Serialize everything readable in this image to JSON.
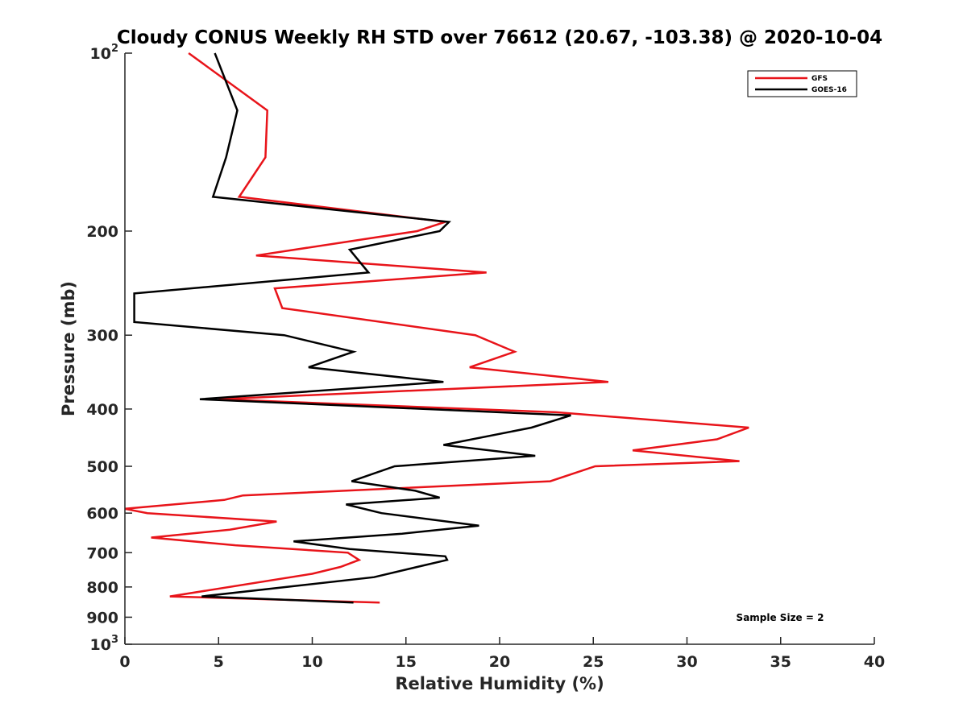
{
  "chart_data": {
    "type": "line",
    "title": "Cloudy CONUS Weekly RH STD over 76612 (20.67, -103.38) @ 2020-10-04",
    "xlabel": "Relative Humidity (%)",
    "ylabel": "Pressure (mb)",
    "xlim": [
      0,
      40
    ],
    "ylim": [
      100,
      1000
    ],
    "yscale": "log",
    "y_reversed": true,
    "x_ticks": [
      "0",
      "5",
      "10",
      "15",
      "20",
      "25",
      "30",
      "35",
      "40"
    ],
    "y_ticks": [
      {
        "value": 100,
        "base": "10",
        "exp": "2"
      },
      {
        "value": 200,
        "label": "200"
      },
      {
        "value": 300,
        "label": "300"
      },
      {
        "value": 400,
        "label": "400"
      },
      {
        "value": 500,
        "label": "500"
      },
      {
        "value": 600,
        "label": "600"
      },
      {
        "value": 700,
        "label": "700"
      },
      {
        "value": 800,
        "label": "800"
      },
      {
        "value": 900,
        "label": "900"
      },
      {
        "value": 1000,
        "base": "10",
        "exp": "3"
      }
    ],
    "legend_position": "top-right",
    "annotation": "Sample Size = 2",
    "series": [
      {
        "name": "GFS",
        "color": "#e8141a",
        "points": [
          [
            3.4,
            100
          ],
          [
            7.6,
            125
          ],
          [
            7.5,
            150
          ],
          [
            6.1,
            175
          ],
          [
            17.1,
            193
          ],
          [
            15.6,
            200
          ],
          [
            7.0,
            220
          ],
          [
            19.3,
            235
          ],
          [
            8.0,
            250
          ],
          [
            8.4,
            270
          ],
          [
            18.7,
            300
          ],
          [
            20.8,
            320
          ],
          [
            18.4,
            340
          ],
          [
            25.8,
            360
          ],
          [
            5.0,
            385
          ],
          [
            23.0,
            405
          ],
          [
            33.3,
            430
          ],
          [
            31.6,
            450
          ],
          [
            27.1,
            470
          ],
          [
            32.8,
            490
          ],
          [
            25.1,
            500
          ],
          [
            22.7,
            530
          ],
          [
            6.3,
            560
          ],
          [
            5.3,
            570
          ],
          [
            0.0,
            590
          ],
          [
            1.2,
            600
          ],
          [
            8.1,
            620
          ],
          [
            5.6,
            640
          ],
          [
            1.4,
            660
          ],
          [
            5.9,
            680
          ],
          [
            11.9,
            700
          ],
          [
            12.5,
            720
          ],
          [
            11.5,
            740
          ],
          [
            10.0,
            760
          ],
          [
            2.4,
            830
          ],
          [
            13.6,
            850
          ]
        ]
      },
      {
        "name": "GOES-16",
        "color": "#000000",
        "points": [
          [
            4.8,
            100
          ],
          [
            6.0,
            125
          ],
          [
            5.4,
            150
          ],
          [
            4.7,
            175
          ],
          [
            17.3,
            193
          ],
          [
            16.8,
            200
          ],
          [
            12.0,
            215
          ],
          [
            13.0,
            235
          ],
          [
            0.5,
            255
          ],
          [
            0.5,
            285
          ],
          [
            8.5,
            300
          ],
          [
            12.2,
            320
          ],
          [
            9.8,
            340
          ],
          [
            17.0,
            360
          ],
          [
            4.0,
            385
          ],
          [
            23.8,
            410
          ],
          [
            21.7,
            430
          ],
          [
            17.0,
            460
          ],
          [
            21.9,
            480
          ],
          [
            14.4,
            500
          ],
          [
            12.1,
            530
          ],
          [
            15.5,
            550
          ],
          [
            16.8,
            565
          ],
          [
            11.8,
            580
          ],
          [
            13.7,
            600
          ],
          [
            18.9,
            630
          ],
          [
            14.8,
            650
          ],
          [
            9.0,
            670
          ],
          [
            12.0,
            690
          ],
          [
            17.1,
            710
          ],
          [
            17.2,
            720
          ],
          [
            15.6,
            740
          ],
          [
            13.3,
            770
          ],
          [
            4.1,
            830
          ],
          [
            12.2,
            850
          ]
        ]
      }
    ]
  }
}
